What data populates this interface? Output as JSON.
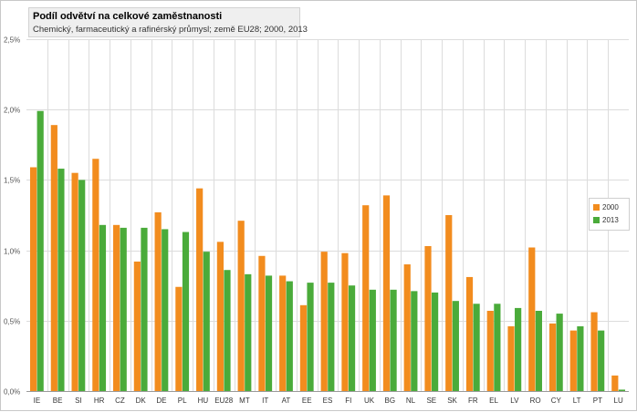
{
  "chart_data": {
    "type": "bar",
    "title": "Podíl odvětví na celkové zaměstnanosti",
    "subtitle": "Chemický, farmaceutický a rafinérský průmysl; země EU28; 2000, 2013",
    "categories": [
      "IE",
      "BE",
      "SI",
      "HR",
      "CZ",
      "DK",
      "DE",
      "PL",
      "HU",
      "EU28",
      "MT",
      "IT",
      "AT",
      "EE",
      "ES",
      "FI",
      "UK",
      "BG",
      "NL",
      "SE",
      "SK",
      "FR",
      "EL",
      "LV",
      "RO",
      "CY",
      "LT",
      "PT",
      "LU"
    ],
    "series": [
      {
        "name": "2000",
        "color": "#f28c1e",
        "values": [
          1.59,
          1.89,
          1.55,
          1.65,
          1.18,
          0.92,
          1.27,
          0.74,
          1.44,
          1.06,
          1.21,
          0.96,
          0.82,
          0.61,
          0.99,
          0.98,
          1.32,
          1.39,
          0.9,
          1.03,
          1.25,
          0.81,
          0.57,
          0.46,
          1.02,
          0.48,
          0.43,
          0.56,
          0.11
        ]
      },
      {
        "name": "2013",
        "color": "#4aab3a",
        "values": [
          1.99,
          1.58,
          1.5,
          1.18,
          1.16,
          1.16,
          1.15,
          1.13,
          0.99,
          0.86,
          0.83,
          0.82,
          0.78,
          0.77,
          0.77,
          0.75,
          0.72,
          0.72,
          0.71,
          0.7,
          0.64,
          0.62,
          0.62,
          0.59,
          0.57,
          0.55,
          0.46,
          0.43,
          0.01
        ]
      }
    ],
    "ylim": [
      0,
      2.5
    ],
    "y_ticks": [
      "0,0%",
      "0,5%",
      "1,0%",
      "1,5%",
      "2,0%",
      "2,5%"
    ],
    "grid": true,
    "legend_position": "right"
  }
}
